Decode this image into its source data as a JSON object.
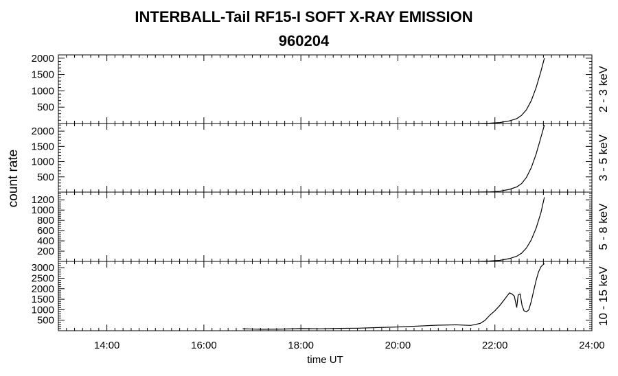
{
  "title": "INTERBALL-Tail RF15-I SOFT X-RAY EMISSION",
  "subtitle": "960204",
  "chart_data": {
    "type": "line",
    "title": "INTERBALL-Tail RF15-I SOFT X-RAY EMISSION",
    "subtitle": "960204",
    "xlabel": "time UT",
    "ylabel": "count rate",
    "xlim": [
      13.0,
      24.0
    ],
    "xtick_values": [
      14,
      16,
      18,
      20,
      22,
      24
    ],
    "xtick_labels": [
      "14:00",
      "16:00",
      "18:00",
      "20:00",
      "22:00",
      "24:00"
    ],
    "panels": [
      {
        "name": "2 - 3 keV",
        "ylim": [
          0,
          2100
        ],
        "yticks": [
          500,
          1000,
          1500,
          2000
        ],
        "ytick_labels": [
          "500",
          "1000",
          "1500",
          "2000"
        ],
        "x": [
          21.6,
          21.9,
          22.1,
          22.3,
          22.45,
          22.55,
          22.65,
          22.75,
          22.85,
          22.95,
          23.02
        ],
        "y": [
          0,
          10,
          30,
          80,
          150,
          250,
          420,
          700,
          1100,
          1600,
          2000
        ]
      },
      {
        "name": "3 - 5 keV",
        "ylim": [
          0,
          2250
        ],
        "yticks": [
          500,
          1000,
          1500,
          2000
        ],
        "ytick_labels": [
          "500",
          "1000",
          "1500",
          "2000"
        ],
        "x": [
          21.6,
          21.9,
          22.1,
          22.3,
          22.45,
          22.55,
          22.65,
          22.75,
          22.85,
          22.95,
          23.02
        ],
        "y": [
          0,
          10,
          30,
          90,
          170,
          280,
          480,
          800,
          1250,
          1800,
          2200
        ]
      },
      {
        "name": "5 - 8 keV",
        "ylim": [
          0,
          1350
        ],
        "yticks": [
          200,
          400,
          600,
          800,
          1000,
          1200
        ],
        "ytick_labels": [
          "200",
          "400",
          "600",
          "800",
          "1000",
          "1200"
        ],
        "x": [
          21.6,
          21.9,
          22.1,
          22.3,
          22.45,
          22.55,
          22.65,
          22.75,
          22.85,
          22.95,
          23.02
        ],
        "y": [
          0,
          8,
          20,
          55,
          100,
          160,
          260,
          420,
          650,
          950,
          1250
        ]
      },
      {
        "name": "10 - 15 keV",
        "ylim": [
          0,
          3300
        ],
        "yticks": [
          500,
          1000,
          1500,
          2000,
          2500,
          3000
        ],
        "ytick_labels": [
          "500",
          "1000",
          "1500",
          "2000",
          "2500",
          "3000"
        ],
        "x": [
          16.8,
          17.2,
          17.6,
          18.0,
          18.4,
          18.8,
          19.2,
          19.6,
          20.0,
          20.4,
          20.8,
          21.2,
          21.5,
          21.7,
          21.8,
          21.9,
          22.0,
          22.1,
          22.2,
          22.3,
          22.35,
          22.4,
          22.45,
          22.48,
          22.52,
          22.56,
          22.6,
          22.65,
          22.7,
          22.75,
          22.8,
          22.85,
          22.9,
          22.95,
          23.02
        ],
        "y": [
          90,
          70,
          80,
          100,
          90,
          110,
          120,
          150,
          180,
          220,
          260,
          280,
          250,
          350,
          500,
          750,
          950,
          1200,
          1500,
          1800,
          1750,
          1650,
          1100,
          1700,
          1750,
          1200,
          950,
          900,
          1000,
          1400,
          1900,
          2400,
          2800,
          3050,
          3200
        ]
      }
    ],
    "grid": false,
    "legend": "none"
  }
}
